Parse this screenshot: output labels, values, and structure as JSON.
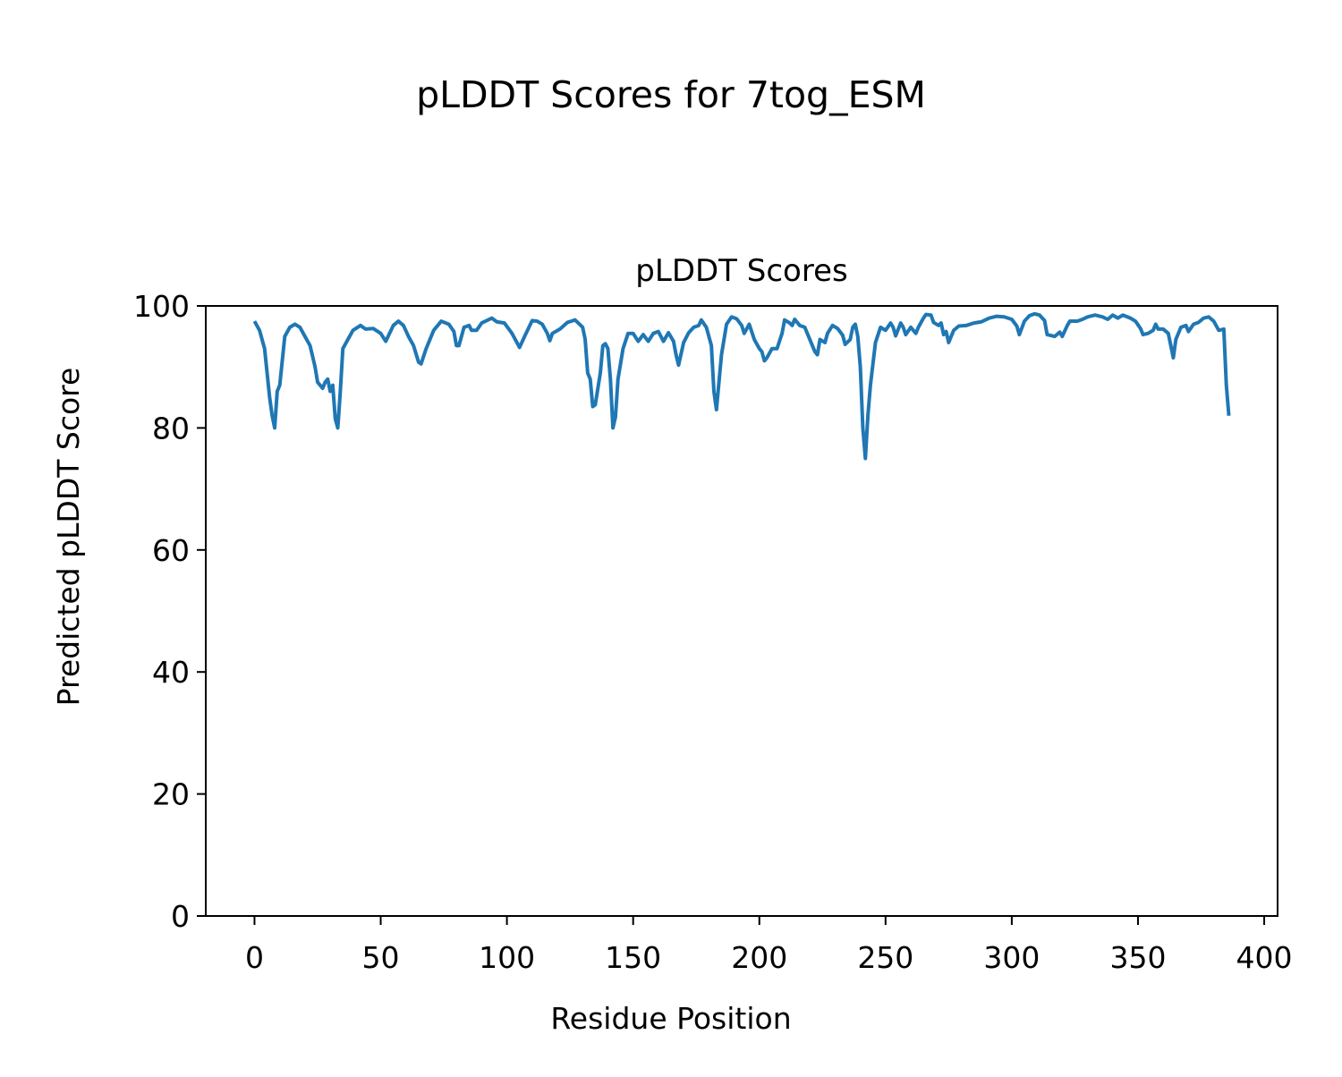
{
  "chart_data": {
    "type": "line",
    "suptitle": "pLDDT Scores for 7tog_ESM",
    "title": "pLDDT Scores",
    "xlabel": "Residue Position",
    "ylabel": "Predicted pLDDT Score",
    "color": "#1f77b4",
    "grid": false,
    "xlim": [
      -19.3,
      405.3
    ],
    "ylim": [
      0,
      100
    ],
    "xticks": [
      0,
      50,
      100,
      150,
      200,
      250,
      300,
      350,
      400
    ],
    "yticks": [
      0,
      20,
      40,
      60,
      80,
      100
    ],
    "x": [
      0,
      2,
      4,
      6,
      7,
      8,
      9,
      10,
      12,
      14,
      16,
      18,
      20,
      22,
      24,
      25,
      27,
      28,
      29,
      30,
      31,
      32,
      33,
      34,
      35,
      37,
      39,
      42,
      44,
      47,
      50,
      52,
      55,
      57,
      59,
      61,
      63,
      65,
      66,
      68,
      71,
      74,
      77,
      79,
      80,
      81,
      83,
      85,
      86,
      88,
      90,
      94,
      96,
      99,
      102,
      105,
      107,
      110,
      112,
      114,
      116,
      117,
      118,
      121,
      124,
      127,
      130,
      131,
      132,
      133,
      134,
      135,
      137,
      138,
      139,
      140,
      141,
      142,
      143,
      144,
      146,
      148,
      150,
      152,
      154,
      156,
      158,
      160,
      162,
      164,
      166,
      167,
      168,
      170,
      172,
      174,
      176,
      177,
      179,
      181,
      182,
      183,
      185,
      187,
      189,
      191,
      193,
      194,
      196,
      198,
      200,
      201,
      202,
      203,
      205,
      207,
      209,
      210,
      212,
      213,
      214,
      216,
      218,
      220,
      222,
      223,
      224,
      226,
      227,
      229,
      231,
      233,
      234,
      236,
      237,
      238,
      239,
      240,
      241,
      242,
      243,
      244,
      246,
      248,
      250,
      252,
      253,
      254,
      256,
      257,
      258,
      260,
      262,
      263,
      265,
      266,
      268,
      269,
      271,
      272,
      273,
      274,
      275,
      277,
      279,
      282,
      285,
      288,
      291,
      294,
      297,
      300,
      302,
      303,
      305,
      307,
      309,
      311,
      313,
      314,
      317,
      319,
      320,
      322,
      323,
      326,
      328,
      330,
      333,
      336,
      338,
      340,
      342,
      344,
      347,
      349,
      351,
      352,
      354,
      356,
      357,
      358,
      360,
      362,
      363,
      364,
      365,
      367,
      369,
      370,
      372,
      374,
      376,
      378,
      380,
      382,
      384,
      385,
      386
    ],
    "values": [
      97.5,
      96,
      93,
      85,
      82,
      80,
      86,
      87,
      95,
      96.5,
      97,
      96.5,
      95,
      93.5,
      90,
      87.5,
      86.5,
      87.5,
      88,
      86,
      87,
      81.5,
      80,
      86,
      93,
      94.5,
      96,
      96.8,
      96.2,
      96.3,
      95.5,
      94.2,
      96.8,
      97.5,
      96.8,
      95,
      93.5,
      90.8,
      90.5,
      93,
      96,
      97.5,
      97,
      95.8,
      93.5,
      93.5,
      96.5,
      96.8,
      96,
      96,
      97.2,
      98,
      97.4,
      97.2,
      95.5,
      93.2,
      95,
      97.6,
      97.5,
      97,
      95.5,
      94.3,
      95.5,
      96.2,
      97.3,
      97.7,
      96.5,
      94.5,
      89,
      88,
      83.5,
      83.8,
      89,
      93.5,
      93.8,
      93,
      88,
      80,
      81.8,
      88,
      93,
      95.5,
      95.5,
      94.2,
      95.3,
      94.2,
      95.5,
      95.8,
      94.2,
      95.6,
      94.2,
      92,
      90.3,
      94,
      95.6,
      96.5,
      96.8,
      97.7,
      96.5,
      93.5,
      86,
      83,
      92,
      97,
      98.2,
      97.9,
      96.8,
      95.5,
      97,
      94.5,
      93,
      92.5,
      91,
      91.5,
      93,
      93,
      95.5,
      97.7,
      97.2,
      96.8,
      97.8,
      96.8,
      96.5,
      94.5,
      92.5,
      92,
      94.5,
      94,
      95.5,
      96.8,
      96.3,
      95.2,
      93.7,
      94.5,
      96.5,
      97,
      95,
      90,
      80,
      75,
      82,
      87,
      94,
      96.5,
      96,
      97.2,
      96.5,
      95.1,
      97.2,
      96.5,
      95.3,
      96.5,
      95.5,
      96.5,
      98,
      98.6,
      98.5,
      97.3,
      96.8,
      97.2,
      95.3,
      95.8,
      94,
      96,
      96.7,
      96.8,
      97.2,
      97.4,
      98,
      98.3,
      98.2,
      97.8,
      96.7,
      95.3,
      97.5,
      98.4,
      98.7,
      98.5,
      97.6,
      95.3,
      95,
      95.7,
      95,
      96.8,
      97.5,
      97.5,
      97.8,
      98.2,
      98.5,
      98.2,
      97.8,
      98.5,
      98,
      98.5,
      98,
      97.5,
      96.3,
      95.3,
      95.5,
      96,
      97,
      96.2,
      96.2,
      95.5,
      93.5,
      91.5,
      94.5,
      96.5,
      96.8,
      95.8,
      97,
      97.3,
      98,
      98.2,
      97.5,
      96,
      96.2,
      87,
      82
    ]
  }
}
